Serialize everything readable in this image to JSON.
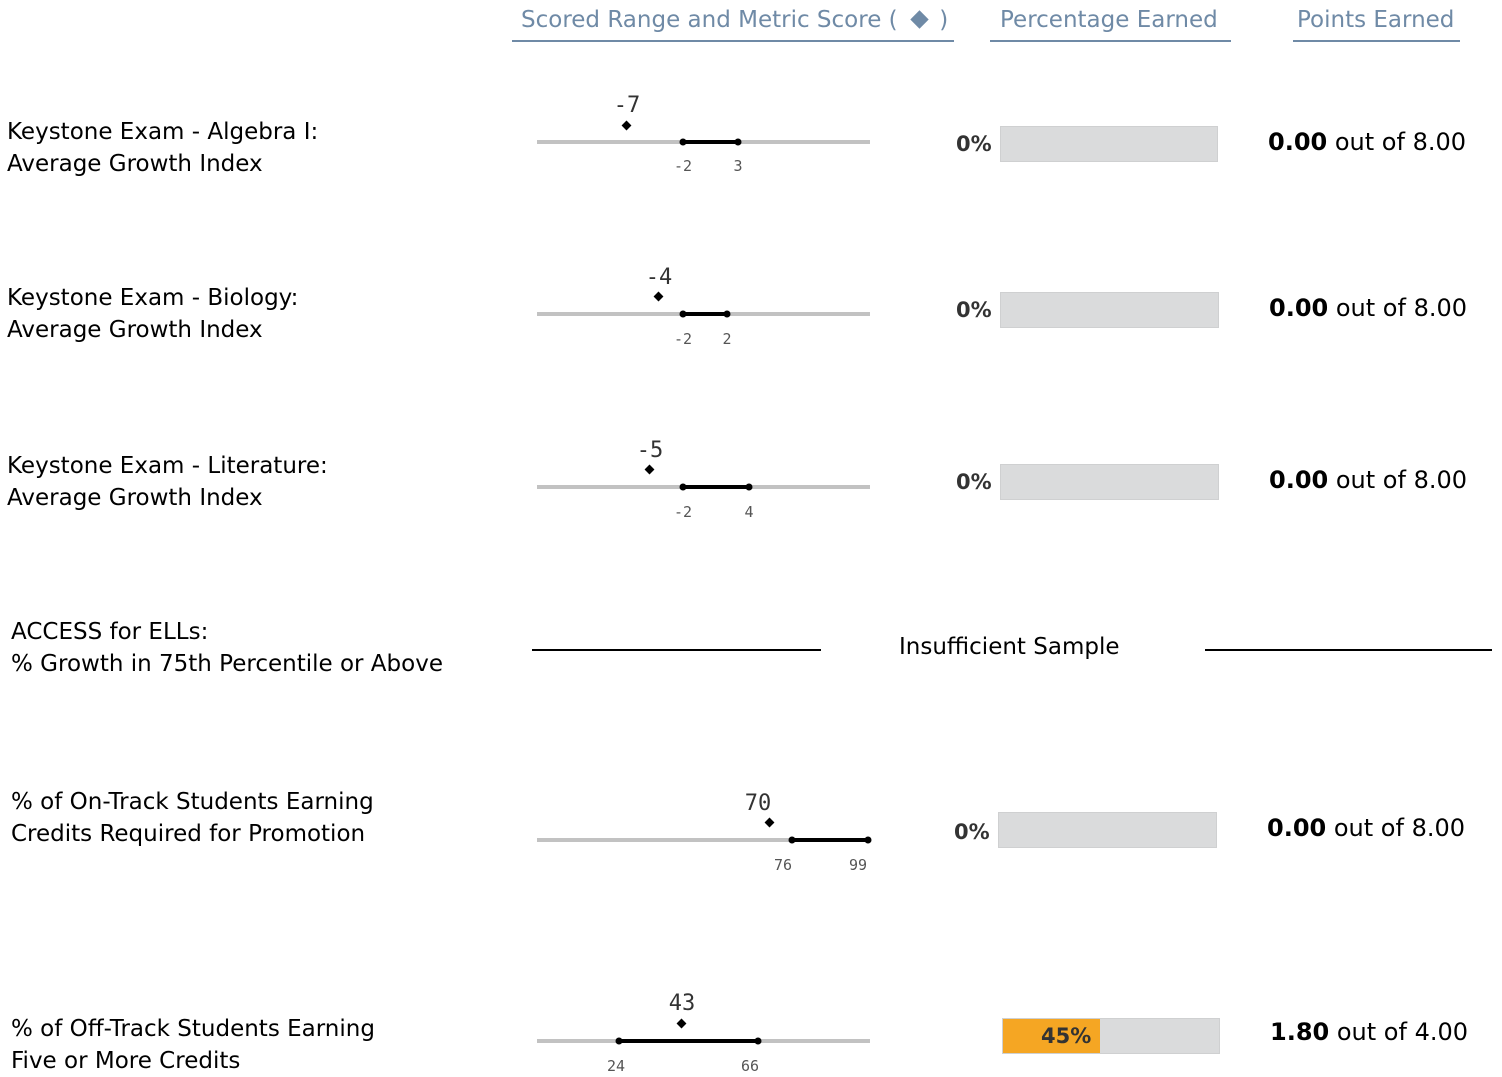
{
  "header": {
    "scored_range_label": "Scored Range and Metric Score ( ",
    "scored_range_suffix": " )",
    "percentage_label": "Percentage Earned",
    "points_label": "Points Earned",
    "accent_color": "#6f8aa6"
  },
  "rows": [
    {
      "line1": "Keystone Exam - Algebra I:",
      "line2": "Average Growth Index",
      "score": "-7",
      "range_low": "-2",
      "range_high": "3",
      "pct": "0%",
      "pct_value": 0,
      "points_earned": "0.00",
      "out_of_text": "out of",
      "points_max": "8.00"
    },
    {
      "line1": "Keystone Exam - Biology:",
      "line2": "Average Growth Index",
      "score": "-4",
      "range_low": "-2",
      "range_high": "2",
      "pct": "0%",
      "pct_value": 0,
      "points_earned": "0.00",
      "out_of_text": "out of",
      "points_max": "8.00"
    },
    {
      "line1": "Keystone Exam - Literature:",
      "line2": "Average Growth Index",
      "score": "-5",
      "range_low": "-2",
      "range_high": "4",
      "pct": "0%",
      "pct_value": 0,
      "points_earned": "0.00",
      "out_of_text": "out of",
      "points_max": "8.00"
    },
    {
      "line1": "ACCESS for ELLs:",
      "line2": "% Growth in 75th Percentile or Above",
      "status": "Insufficient Sample"
    },
    {
      "line1": "% of On-Track Students Earning",
      "line2": "Credits Required for Promotion",
      "score": "70",
      "range_low": "76",
      "range_high": "99",
      "pct": "0%",
      "pct_value": 0,
      "points_earned": "0.00",
      "out_of_text": "out of",
      "points_max": "8.00"
    },
    {
      "line1": "% of Off-Track Students Earning",
      "line2": "Five or More Credits",
      "score": "43",
      "range_low": "24",
      "range_high": "66",
      "pct": "45%",
      "pct_value": 45,
      "points_earned": "1.80",
      "out_of_text": "out of",
      "points_max": "4.00",
      "fill_color": "#f5a623"
    }
  ]
}
